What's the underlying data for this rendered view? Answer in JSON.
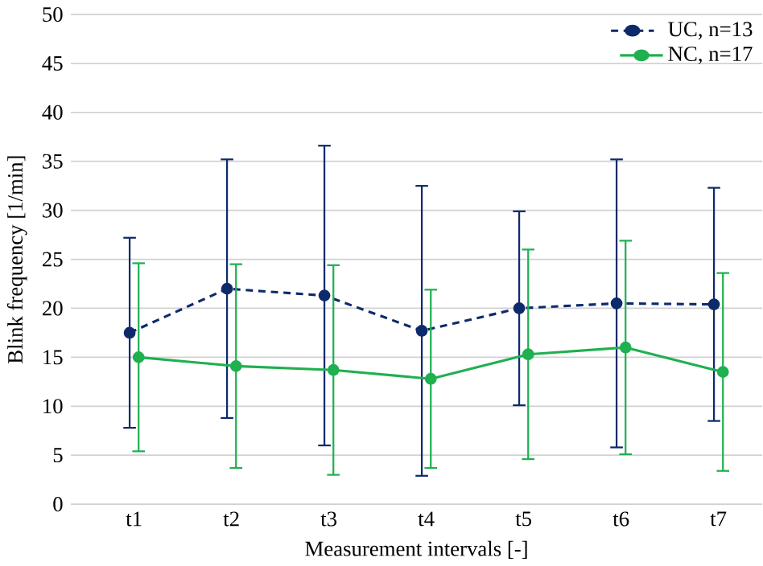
{
  "chart_data": {
    "type": "line",
    "xlabel": "Measurement intervals [-]",
    "ylabel": "Blink frequency [1/min]",
    "categories": [
      "t1",
      "t2",
      "t3",
      "t4",
      "t5",
      "t6",
      "t7"
    ],
    "series": [
      {
        "name": "UC, n=13",
        "color": "#0d2a6b",
        "line_style": "dashed",
        "values": [
          17.5,
          22.0,
          21.3,
          17.7,
          20.0,
          20.5,
          20.4
        ],
        "errors": [
          9.7,
          13.2,
          15.3,
          14.8,
          9.9,
          14.7,
          11.9
        ]
      },
      {
        "name": "NC, n=17",
        "color": "#1fb050",
        "line_style": "solid",
        "values": [
          15.0,
          14.1,
          13.7,
          12.8,
          15.3,
          16.0,
          13.5
        ],
        "errors": [
          9.6,
          10.4,
          10.7,
          9.1,
          10.7,
          10.9,
          10.1
        ]
      }
    ],
    "ylim": [
      0,
      50
    ],
    "yticks": [
      0,
      5,
      10,
      15,
      20,
      25,
      30,
      35,
      40,
      45,
      50
    ],
    "grid": "y",
    "legend": "top right",
    "marker": "circle"
  }
}
